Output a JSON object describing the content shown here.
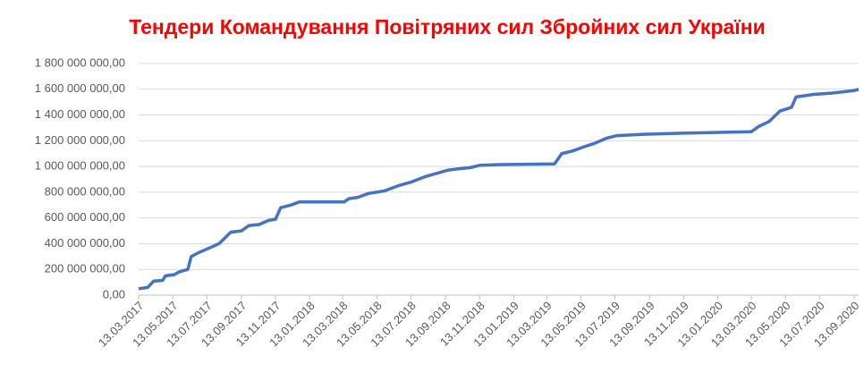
{
  "chart_data": {
    "type": "line",
    "title": "Тендери Командування Повітряних сил Збройних сил України",
    "color": "#4472c4",
    "grid": true,
    "x": [
      "2017-03-13",
      "2017-03-29",
      "2017-04-09",
      "2017-04-25",
      "2017-04-30",
      "2017-05-16",
      "2017-05-24",
      "2017-06-09",
      "2017-06-15",
      "2017-06-28",
      "2017-07-14",
      "2017-08-04",
      "2017-08-25",
      "2017-09-13",
      "2017-09-26",
      "2017-10-15",
      "2017-10-31",
      "2017-11-13",
      "2017-11-22",
      "2017-12-10",
      "2017-12-26",
      "2018-03-16",
      "2018-03-24",
      "2018-04-09",
      "2018-04-28",
      "2018-05-27",
      "2018-06-20",
      "2018-07-14",
      "2018-08-07",
      "2018-08-31",
      "2018-09-16",
      "2018-10-02",
      "2018-10-26",
      "2018-11-14",
      "2018-12-21",
      "2019-03-27",
      "2019-04-09",
      "2019-04-28",
      "2019-05-17",
      "2019-06-07",
      "2019-06-28",
      "2019-07-17",
      "2019-09-03",
      "2019-11-22",
      "2020-03-13",
      "2020-03-26",
      "2020-04-14",
      "2020-05-03",
      "2020-05-24",
      "2020-06-01",
      "2020-07-03",
      "2020-08-04",
      "2020-09-13",
      "2020-09-21"
    ],
    "values": [
      50000000,
      60000000,
      110000000,
      115000000,
      150000000,
      160000000,
      180000000,
      200000000,
      300000000,
      330000000,
      360000000,
      400000000,
      490000000,
      500000000,
      540000000,
      550000000,
      580000000,
      590000000,
      680000000,
      700000000,
      725000000,
      725000000,
      750000000,
      760000000,
      790000000,
      810000000,
      850000000,
      880000000,
      920000000,
      950000000,
      970000000,
      980000000,
      990000000,
      1010000000,
      1015000000,
      1020000000,
      1100000000,
      1120000000,
      1150000000,
      1180000000,
      1220000000,
      1240000000,
      1250000000,
      1260000000,
      1270000000,
      1310000000,
      1350000000,
      1430000000,
      1460000000,
      1540000000,
      1560000000,
      1570000000,
      1590000000,
      1600000000
    ],
    "xlim": [
      "2017-03-13",
      "2020-09-21"
    ],
    "xticks": [
      {
        "value": "2017-03-13",
        "label": "13.03.2017"
      },
      {
        "value": "2017-05-13",
        "label": "13.05.2017"
      },
      {
        "value": "2017-07-13",
        "label": "13.07.2017"
      },
      {
        "value": "2017-09-13",
        "label": "13.09.2017"
      },
      {
        "value": "2017-11-13",
        "label": "13.11.2017"
      },
      {
        "value": "2018-01-13",
        "label": "13.01.2018"
      },
      {
        "value": "2018-03-13",
        "label": "13.03.2018"
      },
      {
        "value": "2018-05-13",
        "label": "13.05.2018"
      },
      {
        "value": "2018-07-13",
        "label": "13.07.2018"
      },
      {
        "value": "2018-09-13",
        "label": "13.09.2018"
      },
      {
        "value": "2018-11-13",
        "label": "13.11.2018"
      },
      {
        "value": "2019-01-13",
        "label": "13.01.2019"
      },
      {
        "value": "2019-03-13",
        "label": "13.03.2019"
      },
      {
        "value": "2019-05-13",
        "label": "13.05.2019"
      },
      {
        "value": "2019-07-13",
        "label": "13.07.2019"
      },
      {
        "value": "2019-09-13",
        "label": "13.09.2019"
      },
      {
        "value": "2019-11-13",
        "label": "13.11.2019"
      },
      {
        "value": "2020-01-13",
        "label": "13.01.2020"
      },
      {
        "value": "2020-03-13",
        "label": "13.03.2020"
      },
      {
        "value": "2020-05-13",
        "label": "13.05.2020"
      },
      {
        "value": "2020-07-13",
        "label": "13.07.2020"
      },
      {
        "value": "2020-09-13",
        "label": "13.09.2020"
      }
    ],
    "ylim": [
      0,
      1800000000
    ],
    "yticks": [
      {
        "value": 0,
        "label": "0,00"
      },
      {
        "value": 200000000,
        "label": "200 000 000,00"
      },
      {
        "value": 400000000,
        "label": "400 000 000,00"
      },
      {
        "value": 600000000,
        "label": "600 000 000,00"
      },
      {
        "value": 800000000,
        "label": "800 000 000,00"
      },
      {
        "value": 1000000000,
        "label": "1 000 000 000,00"
      },
      {
        "value": 1200000000,
        "label": "1 200 000 000,00"
      },
      {
        "value": 1400000000,
        "label": "1 400 000 000,00"
      },
      {
        "value": 1600000000,
        "label": "1 600 000 000,00"
      },
      {
        "value": 1800000000,
        "label": "1 800 000 000,00"
      }
    ]
  }
}
